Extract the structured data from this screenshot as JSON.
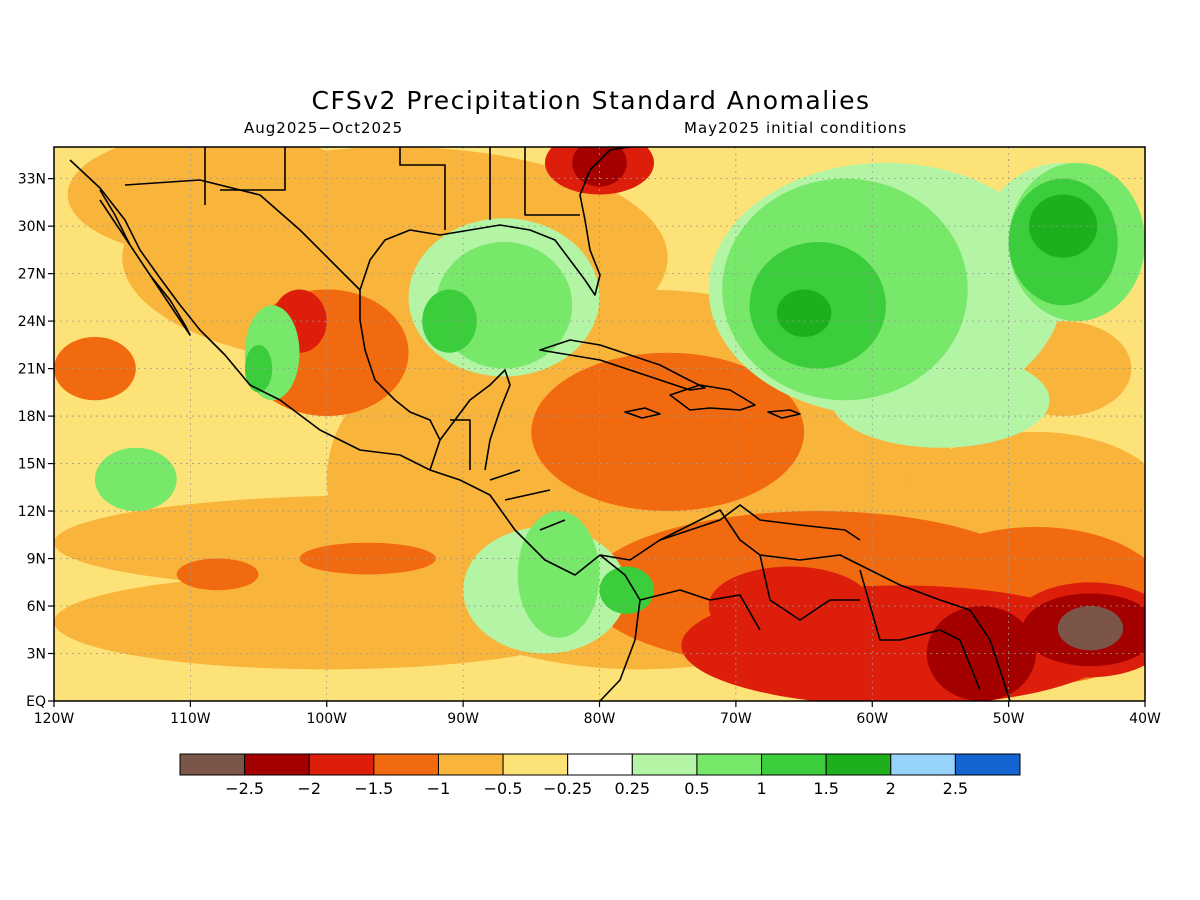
{
  "title": "CFSv2 Precipitation Standard Anomalies",
  "subtitle_left": "Aug2025−Oct2025",
  "subtitle_right": "May2025 initial conditions",
  "map": {
    "lon_range": [
      -120,
      -40
    ],
    "lat_range": [
      0,
      35
    ],
    "lon_ticks": [
      {
        "v": -120,
        "label": "120W"
      },
      {
        "v": -110,
        "label": "110W"
      },
      {
        "v": -100,
        "label": "100W"
      },
      {
        "v": -90,
        "label": "90W"
      },
      {
        "v": -80,
        "label": "80W"
      },
      {
        "v": -70,
        "label": "70W"
      },
      {
        "v": -60,
        "label": "60W"
      },
      {
        "v": -50,
        "label": "50W"
      },
      {
        "v": -40,
        "label": "40W"
      }
    ],
    "lat_ticks": [
      {
        "v": 0,
        "label": "EQ"
      },
      {
        "v": 3,
        "label": "3N"
      },
      {
        "v": 6,
        "label": "6N"
      },
      {
        "v": 9,
        "label": "9N"
      },
      {
        "v": 12,
        "label": "12N"
      },
      {
        "v": 15,
        "label": "15N"
      },
      {
        "v": 18,
        "label": "18N"
      },
      {
        "v": 21,
        "label": "21N"
      },
      {
        "v": 24,
        "label": "24N"
      },
      {
        "v": 27,
        "label": "27N"
      },
      {
        "v": 30,
        "label": "30N"
      },
      {
        "v": 33,
        "label": "33N"
      }
    ]
  },
  "colorbar": {
    "colors": [
      "#7a5548",
      "#a50000",
      "#dc1e0b",
      "#f26a0f",
      "#f9b43c",
      "#fde278",
      "#ffffff",
      "#b4f5a5",
      "#78e86a",
      "#3ccd3c",
      "#1eaf1e",
      "#96d2fa",
      "#1464d2"
    ],
    "labels": [
      "−2.5",
      "−2",
      "−1.5",
      "−1",
      "−0.5",
      "−0.25",
      "0.25",
      "0.5",
      "1",
      "1.5",
      "2",
      "2.5"
    ]
  },
  "anomaly_regions": [
    {
      "level": "-0.25",
      "lon": -84,
      "lat": 17,
      "rlon": 38,
      "rlat": 17
    },
    {
      "level": "-0.25",
      "lon": -60,
      "lat": 7,
      "rlon": 22,
      "rlat": 9
    },
    {
      "level": "-0.5",
      "lon": -77,
      "lat": 14,
      "rlon": 23,
      "rlat": 12
    },
    {
      "level": "-0.5",
      "lon": -95,
      "lat": 28,
      "rlon": 20,
      "rlat": 7
    },
    {
      "level": "-0.5",
      "lon": -108,
      "lat": 32,
      "rlon": 11,
      "rlat": 4
    },
    {
      "level": "-0.5",
      "lon": -96,
      "lat": 10,
      "rlon": 24,
      "rlat": 3
    },
    {
      "level": "-0.5",
      "lon": -100,
      "lat": 5,
      "rlon": 20,
      "rlat": 3
    },
    {
      "level": "-0.5",
      "lon": -48,
      "lat": 12,
      "rlon": 10,
      "rlat": 5
    },
    {
      "level": "-0.5",
      "lon": -46,
      "lat": 21,
      "rlon": 5,
      "rlat": 3
    },
    {
      "level": "-1",
      "lon": -75,
      "lat": 17,
      "rlon": 10,
      "rlat": 5
    },
    {
      "level": "-1",
      "lon": -100,
      "lat": 22,
      "rlon": 6,
      "rlat": 4
    },
    {
      "level": "-1",
      "lon": -86,
      "lat": 27,
      "rlon": 4,
      "rlat": 2
    },
    {
      "level": "-1",
      "lon": -64,
      "lat": 7,
      "rlon": 17,
      "rlat": 5
    },
    {
      "level": "-1",
      "lon": -48,
      "lat": 6,
      "rlon": 10,
      "rlat": 5
    },
    {
      "level": "-1",
      "lon": -117,
      "lat": 21,
      "rlon": 3,
      "rlat": 2
    },
    {
      "level": "-1",
      "lon": -97,
      "lat": 9,
      "rlon": 5,
      "rlat": 1
    },
    {
      "level": "-1",
      "lon": -108,
      "lat": 8,
      "rlon": 3,
      "rlat": 1
    },
    {
      "level": "-1.5",
      "lon": -58,
      "lat": 3.5,
      "rlon": 16,
      "rlat": 3.8
    },
    {
      "level": "-1.5",
      "lon": -66,
      "lat": 6,
      "rlon": 6,
      "rlat": 2.5
    },
    {
      "level": "-1.5",
      "lon": -44,
      "lat": 4.5,
      "rlon": 6,
      "rlat": 3
    },
    {
      "level": "-1.5",
      "lon": -80,
      "lat": 34,
      "rlon": 4,
      "rlat": 2
    },
    {
      "level": "-1.5",
      "lon": -102,
      "lat": 24,
      "rlon": 2,
      "rlat": 2
    },
    {
      "level": "-2",
      "lon": -52,
      "lat": 3,
      "rlon": 4,
      "rlat": 3
    },
    {
      "level": "-2",
      "lon": -44,
      "lat": 4.5,
      "rlon": 5,
      "rlat": 2.3
    },
    {
      "level": "-2",
      "lon": -80,
      "lat": 34,
      "rlon": 2,
      "rlat": 1.5
    },
    {
      "level": "-2.5",
      "lon": -44,
      "lat": 4.6,
      "rlon": 2.4,
      "rlat": 1.4
    },
    {
      "level": "0.25",
      "lon": -87,
      "lat": 25.5,
      "rlon": 7,
      "rlat": 5
    },
    {
      "level": "0.25",
      "lon": -59,
      "lat": 26,
      "rlon": 13,
      "rlat": 8
    },
    {
      "level": "0.25",
      "lon": -46,
      "lat": 29,
      "rlon": 6,
      "rlat": 5
    },
    {
      "level": "0.25",
      "lon": -84,
      "lat": 7,
      "rlon": 6,
      "rlat": 4
    },
    {
      "level": "0.25",
      "lon": -55,
      "lat": 19,
      "rlon": 8,
      "rlat": 3
    },
    {
      "level": "0.5",
      "lon": -87,
      "lat": 25,
      "rlon": 5,
      "rlat": 4
    },
    {
      "level": "0.5",
      "lon": -62,
      "lat": 26,
      "rlon": 9,
      "rlat": 7
    },
    {
      "level": "0.5",
      "lon": -45,
      "lat": 29,
      "rlon": 5,
      "rlat": 5
    },
    {
      "level": "0.5",
      "lon": -83,
      "lat": 8,
      "rlon": 3,
      "rlat": 4
    },
    {
      "level": "0.5",
      "lon": -104,
      "lat": 22,
      "rlon": 2,
      "rlat": 3
    },
    {
      "level": "0.5",
      "lon": -114,
      "lat": 14,
      "rlon": 3,
      "rlat": 2
    },
    {
      "level": "1",
      "lon": -64,
      "lat": 25,
      "rlon": 5,
      "rlat": 4
    },
    {
      "level": "1",
      "lon": -46,
      "lat": 29,
      "rlon": 4,
      "rlat": 4
    },
    {
      "level": "1",
      "lon": -78,
      "lat": 7,
      "rlon": 2,
      "rlat": 1.5
    },
    {
      "level": "1",
      "lon": -91,
      "lat": 24,
      "rlon": 2,
      "rlat": 2
    },
    {
      "level": "1",
      "lon": -105,
      "lat": 21,
      "rlon": 1,
      "rlat": 1.5
    },
    {
      "level": "1.5",
      "lon": -46,
      "lat": 30,
      "rlon": 2.5,
      "rlat": 2
    },
    {
      "level": "1.5",
      "lon": -65,
      "lat": 24.5,
      "rlon": 2,
      "rlat": 1.5
    }
  ]
}
